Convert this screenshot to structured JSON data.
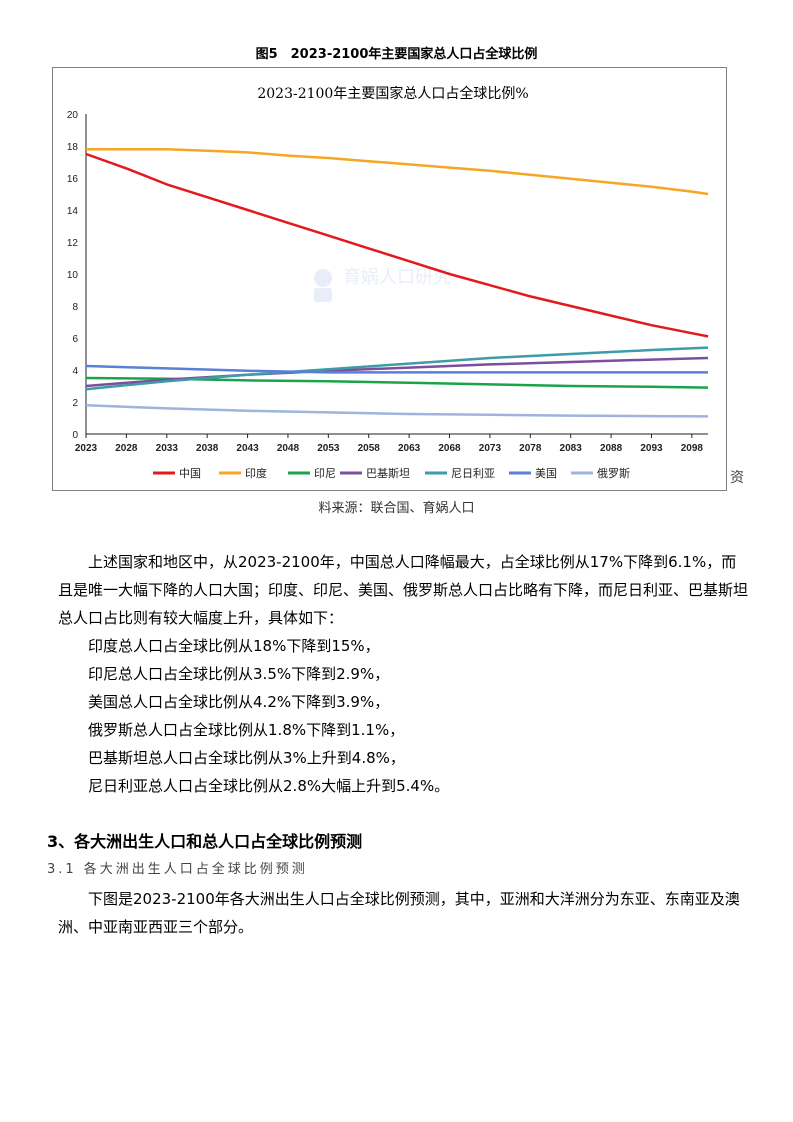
{
  "figure": {
    "caption": "图5　2023-2100年主要国家总人口占全球比例",
    "source": "料来源：联合国、育娲人口",
    "stray_text": "资",
    "watermark": "育娲人口研究"
  },
  "chart_data": {
    "type": "line",
    "title": "2023-2100年主要国家总人口占全球比例%",
    "xlabel": "",
    "ylabel": "",
    "ylim": [
      0,
      20
    ],
    "yticks": [
      "0",
      "2",
      "4",
      "6",
      "8",
      "10",
      "12",
      "14",
      "16",
      "18",
      "20"
    ],
    "x_range": [
      2023,
      2100
    ],
    "xticks": [
      "2023",
      "2028",
      "2033",
      "2038",
      "2043",
      "2048",
      "2053",
      "2058",
      "2063",
      "2068",
      "2073",
      "2078",
      "2083",
      "2088",
      "2093",
      "2098"
    ],
    "grid": false,
    "legend_position": "bottom",
    "series": [
      {
        "name": "中国",
        "color": "#e31a1c",
        "x": [
          2023,
          2028,
          2033,
          2038,
          2043,
          2048,
          2053,
          2058,
          2063,
          2068,
          2073,
          2078,
          2083,
          2088,
          2093,
          2098,
          2100
        ],
        "values": [
          17.5,
          16.6,
          15.6,
          14.8,
          14.0,
          13.2,
          12.4,
          11.6,
          10.8,
          10.0,
          9.3,
          8.6,
          8.0,
          7.4,
          6.8,
          6.3,
          6.1
        ]
      },
      {
        "name": "印度",
        "color": "#f5a623",
        "x": [
          2023,
          2028,
          2033,
          2038,
          2043,
          2048,
          2053,
          2058,
          2063,
          2068,
          2073,
          2078,
          2083,
          2088,
          2093,
          2098,
          2100
        ],
        "values": [
          17.8,
          17.8,
          17.8,
          17.7,
          17.6,
          17.4,
          17.25,
          17.05,
          16.85,
          16.65,
          16.45,
          16.2,
          15.95,
          15.7,
          15.45,
          15.15,
          15.0
        ]
      },
      {
        "name": "印尼",
        "color": "#1aa34a",
        "x": [
          2023,
          2033,
          2043,
          2053,
          2063,
          2073,
          2083,
          2093,
          2100
        ],
        "values": [
          3.5,
          3.45,
          3.35,
          3.3,
          3.2,
          3.1,
          3.0,
          2.95,
          2.9
        ]
      },
      {
        "name": "巴基斯坦",
        "color": "#7b4f9d",
        "x": [
          2023,
          2033,
          2043,
          2053,
          2063,
          2073,
          2083,
          2093,
          2100
        ],
        "values": [
          3.0,
          3.4,
          3.7,
          3.95,
          4.15,
          4.35,
          4.5,
          4.65,
          4.75
        ]
      },
      {
        "name": "尼日利亚",
        "color": "#3d9ca8",
        "x": [
          2023,
          2033,
          2043,
          2053,
          2063,
          2073,
          2083,
          2093,
          2100
        ],
        "values": [
          2.8,
          3.3,
          3.7,
          4.05,
          4.4,
          4.75,
          5.0,
          5.25,
          5.4
        ]
      },
      {
        "name": "美国",
        "color": "#5a7fd6",
        "x": [
          2023,
          2033,
          2043,
          2053,
          2063,
          2073,
          2083,
          2093,
          2100
        ],
        "values": [
          4.25,
          4.1,
          3.95,
          3.85,
          3.85,
          3.85,
          3.85,
          3.85,
          3.85
        ]
      },
      {
        "name": "俄罗斯",
        "color": "#9db4dd",
        "x": [
          2023,
          2033,
          2043,
          2053,
          2063,
          2073,
          2083,
          2093,
          2100
        ],
        "values": [
          1.8,
          1.6,
          1.45,
          1.35,
          1.25,
          1.2,
          1.15,
          1.12,
          1.1
        ]
      }
    ]
  },
  "body": {
    "para1": "上述国家和地区中，从2023-2100年，中国总人口降幅最大，占全球比例从17%下降到6.1%，而且是唯一大幅下降的人口大国；印度、印尼、美国、俄罗斯总人口占比略有下降，而尼日利亚、巴基斯坦总人口占比则有较大幅度上升，具体如下：",
    "lines": [
      "印度总人口占全球比例从18%下降到15%，",
      "印尼总人口占全球比例从3.5%下降到2.9%，",
      "美国总人口占全球比例从4.2%下降到3.9%，",
      "俄罗斯总人口占全球比例从1.8%下降到1.1%，",
      "巴基斯坦总人口占全球比例从3%上升到4.8%，",
      "尼日利亚总人口占全球比例从2.8%大幅上升到5.4%。"
    ],
    "heading3": "3、各大洲出生人口和总人口占全球比例预测",
    "heading31": "3.1 各大洲出生人口占全球比例预测",
    "para2": "下图是2023-2100年各大洲出生人口占全球比例预测，其中，亚洲和大洋洲分为东亚、东南亚及澳洲、中亚南亚西亚三个部分。"
  }
}
